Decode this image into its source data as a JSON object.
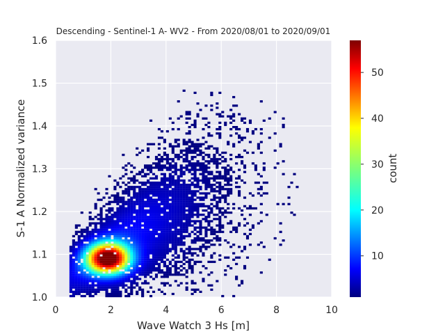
{
  "chart_data": {
    "type": "heatmap",
    "title": "Descending - Sentinel-1 A- WV2 - From 2020/08/01 to 2020/09/01",
    "xlabel": "Wave Watch 3 Hs [m]",
    "ylabel": "S-1 A Normalized variance",
    "xlim": [
      0,
      10
    ],
    "ylim": [
      1.0,
      1.6
    ],
    "xticks": [
      0,
      2,
      4,
      6,
      8,
      10
    ],
    "yticks": [
      1.0,
      1.1,
      1.2,
      1.3,
      1.4,
      1.5,
      1.6
    ],
    "xtick_labels": [
      "0",
      "2",
      "4",
      "6",
      "8",
      "10"
    ],
    "ytick_labels": [
      "1.0",
      "1.1",
      "1.2",
      "1.3",
      "1.4",
      "1.5",
      "1.6"
    ],
    "grid": true,
    "colormap": "jet",
    "colorbar": {
      "label": "count",
      "range": [
        1,
        57
      ],
      "ticks": [
        10,
        20,
        30,
        40,
        50
      ],
      "tick_labels": [
        "10",
        "20",
        "30",
        "40",
        "50"
      ]
    },
    "density_model": {
      "description": "2D histogram of co-located points; dense core near (1.9, 1.09), diffuse tail up to (9, 1.48)",
      "peak_count": 57,
      "core_center": [
        1.9,
        1.09
      ],
      "trend": "normalized variance increases with Hs"
    },
    "colors": {
      "plot_background": "#eaeaf2",
      "grid": "#ffffff",
      "text": "#262626"
    }
  }
}
